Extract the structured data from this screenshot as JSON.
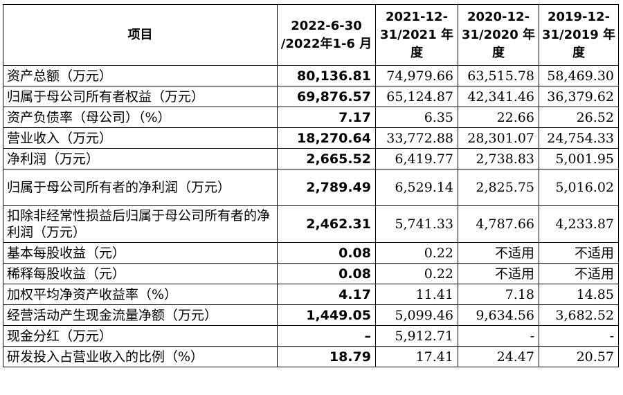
{
  "headers": [
    "项目",
    "2022-6-30 /2022年1-6 月",
    "2021-12- 31/2021 年度",
    "2020-12- 31/2020 年度",
    "2019-12- 31/2019 年度"
  ],
  "rows": [
    {
      "label": "资产总额（万元）",
      "values": [
        "80,136.81",
        "74,979.66",
        "63,515.78",
        "58,469.30"
      ]
    },
    {
      "label": "归属于母公司所有者权益（万元）",
      "values": [
        "69,876.57",
        "65,124.87",
        "42,341.46",
        "36,379.62"
      ]
    },
    {
      "label": "资产负债率（母公司）（%）",
      "values": [
        "7.17",
        "6.35",
        "22.66",
        "26.52"
      ]
    },
    {
      "label": "营业收入（万元）",
      "values": [
        "18,270.64",
        "33,772.88",
        "28,301.07",
        "24,754.33"
      ]
    },
    {
      "label": "净利润（万元）",
      "values": [
        "2,665.52",
        "6,419.77",
        "2,738.83",
        "5,001.95"
      ]
    },
    {
      "label": "归属于母公司所有者的净利润（万元）",
      "values": [
        "2,789.49",
        "6,529.14",
        "2,825.75",
        "5,016.02"
      ]
    },
    {
      "label": "扣除非经常性损益后归属于母公司所有者的净利润（万元）",
      "values": [
        "2,462.31",
        "5,741.33",
        "4,787.66",
        "4,233.87"
      ]
    },
    {
      "label": "基本每股收益（元）",
      "values": [
        "0.08",
        "0.22",
        "不适用",
        "不适用"
      ]
    },
    {
      "label": "稀释每股收益（元）",
      "values": [
        "0.08",
        "0.22",
        "不适用",
        "不适用"
      ]
    },
    {
      "label": "加权平均净资产收益率（%）",
      "values": [
        "4.17",
        "11.41",
        "7.18",
        "14.85"
      ]
    },
    {
      "label": "经营活动产生现金流量净额（万元）",
      "values": [
        "1,449.05",
        "5,099.46",
        "9,634.56",
        "3,682.52"
      ]
    },
    {
      "label": "现金分红（万元）",
      "values": [
        "–",
        "5,912.71",
        "-",
        "-"
      ]
    },
    {
      "label": "研发投入占营业收入的比例（%）",
      "values": [
        "18.79",
        "17.41",
        "24.47",
        "20.57"
      ]
    }
  ]
}
